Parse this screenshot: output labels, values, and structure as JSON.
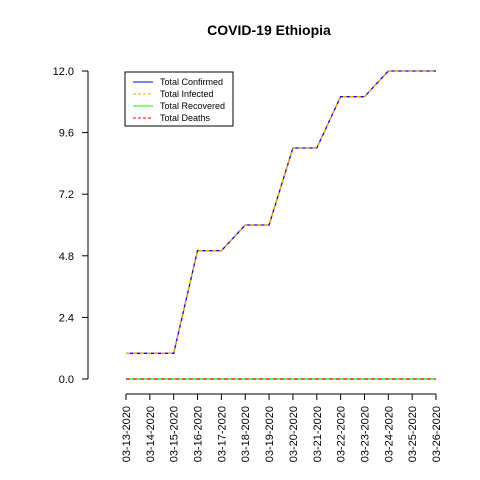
{
  "chart_data": {
    "type": "line",
    "title": "COVID-19 Ethiopia",
    "xlabel": "",
    "ylabel": "",
    "x": [
      "03-13-2020",
      "03-14-2020",
      "03-15-2020",
      "03-16-2020",
      "03-17-2020",
      "03-18-2020",
      "03-19-2020",
      "03-20-2020",
      "03-21-2020",
      "03-22-2020",
      "03-23-2020",
      "03-24-2020",
      "03-25-2020",
      "03-26-2020"
    ],
    "ylim": [
      0,
      12
    ],
    "yticks": [
      "0.0",
      "2.4",
      "4.8",
      "7.2",
      "9.6",
      "12.0"
    ],
    "legend_position": "top-left",
    "grid": false,
    "series": [
      {
        "name": "Total Confirmed",
        "color": "#0000ff",
        "dash": "solid",
        "values": [
          1,
          1,
          1,
          5,
          5,
          6,
          6,
          9,
          9,
          11,
          11,
          12,
          12,
          12
        ]
      },
      {
        "name": "Total Infected",
        "color": "#ffa500",
        "dash": "dashed",
        "values": [
          1,
          1,
          1,
          5,
          5,
          6,
          6,
          9,
          9,
          11,
          11,
          12,
          12,
          12
        ]
      },
      {
        "name": "Total Recovered",
        "color": "#00ff00",
        "dash": "solid",
        "values": [
          0,
          0,
          0,
          0,
          0,
          0,
          0,
          0,
          0,
          0,
          0,
          0,
          0,
          0
        ]
      },
      {
        "name": "Total Deaths",
        "color": "#ff0000",
        "dash": "dashed",
        "values": [
          0,
          0,
          0,
          0,
          0,
          0,
          0,
          0,
          0,
          0,
          0,
          0,
          0,
          0
        ]
      }
    ]
  }
}
